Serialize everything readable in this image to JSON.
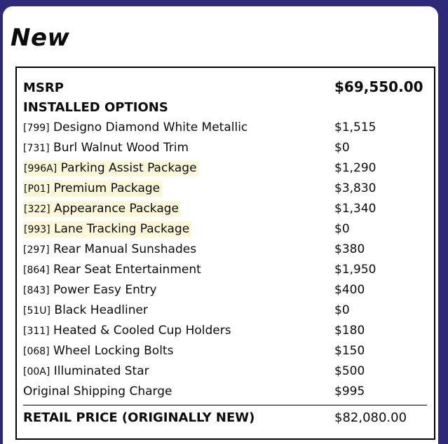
{
  "colors": {
    "frame": "#2e2878",
    "highlight": "#fbf8d8"
  },
  "page": {
    "title": "New"
  },
  "sticker": {
    "msrp": {
      "label": "MSRP",
      "price": "$69,550.00"
    },
    "options_header": "INSTALLED OPTIONS",
    "options": [
      {
        "code": "[799]",
        "name": "Designo Diamond White Metallic",
        "price": "$1,515",
        "highlighted": false
      },
      {
        "code": "[731]",
        "name": "Burl Walnut Wood Trim",
        "price": "$0",
        "highlighted": false
      },
      {
        "code": "[996A]",
        "name": "Parking Assist Package",
        "price": "$1,290",
        "highlighted": true
      },
      {
        "code": "[P01]",
        "name": "Premium Package",
        "price": "$3,830",
        "highlighted": true
      },
      {
        "code": "[322]",
        "name": "Appearance Package",
        "price": "$1,340",
        "highlighted": true
      },
      {
        "code": "[993]",
        "name": "Lane Tracking Package",
        "price": "$0",
        "highlighted": true
      },
      {
        "code": "[297]",
        "name": "Rear Manual Sunshades",
        "price": "$380",
        "highlighted": false
      },
      {
        "code": "[864]",
        "name": "Rear Seat Entertainment",
        "price": "$1,950",
        "highlighted": false
      },
      {
        "code": "[843]",
        "name": "Power Easy Entry",
        "price": "$400",
        "highlighted": false
      },
      {
        "code": "[51U]",
        "name": "Black Headliner",
        "price": "$0",
        "highlighted": false
      },
      {
        "code": "[311]",
        "name": "Heated &amp; Cooled Cup Holders",
        "price": "$180",
        "highlighted": false
      },
      {
        "code": "[068]",
        "name": "Wheel Locking Bolts",
        "price": "$150",
        "highlighted": false
      },
      {
        "code": "[00A]",
        "name": "Illuminated Star",
        "price": "$500",
        "highlighted": false
      }
    ],
    "shipping": {
      "label": "Original Shipping Charge",
      "price": "$995"
    },
    "retail": {
      "label": "RETAIL PRICE (ORIGINALLY NEW)",
      "price": "$82,080.00"
    }
  }
}
